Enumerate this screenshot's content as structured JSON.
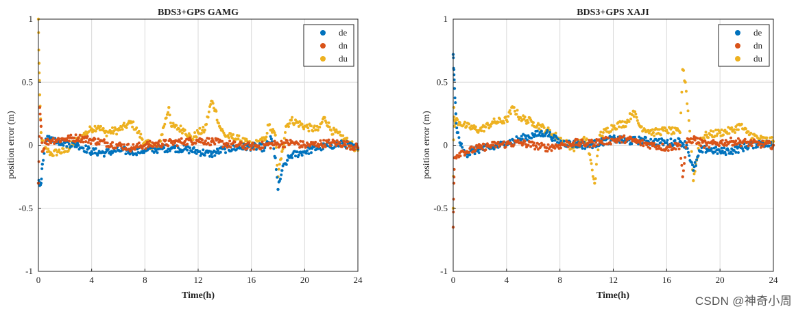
{
  "watermark": "CSDN @神奇小周",
  "colors": {
    "de": "#0072bd",
    "dn": "#d95319",
    "du": "#edb120",
    "grid": "#d9d9d9",
    "axis": "#222222"
  },
  "chart_data": [
    {
      "type": "scatter",
      "title": "BDS3+GPS GAMG",
      "xlabel": "Time(h)",
      "ylabel": "position error (m)",
      "xlim": [
        0,
        24
      ],
      "ylim": [
        -1,
        1
      ],
      "xticks": [
        0,
        4,
        8,
        12,
        16,
        20,
        24
      ],
      "yticks": [
        -1,
        -0.5,
        0,
        0.5,
        1
      ],
      "xtick_labels": [
        "0",
        "4",
        "8",
        "12",
        "16",
        "20",
        "24"
      ],
      "ytick_labels": [
        "-1",
        "-0.5",
        "0",
        "0.5",
        "1"
      ],
      "grid": true,
      "legend_position": "top-right",
      "series": [
        {
          "name": "de",
          "x": [
            0,
            0.1,
            0.2,
            0.3,
            0.5,
            0.8,
            1,
            1.5,
            2,
            3,
            4,
            5,
            6,
            7,
            8,
            9,
            10,
            11,
            12,
            13,
            14,
            15,
            16,
            17,
            17.5,
            17.8,
            18,
            18.3,
            18.7,
            19,
            20,
            21,
            22,
            23,
            24
          ],
          "y": [
            -0.3,
            -0.32,
            -0.3,
            -0.15,
            0.02,
            0.07,
            0.06,
            0.03,
            0.02,
            0.0,
            -0.05,
            -0.06,
            -0.04,
            -0.05,
            -0.04,
            -0.03,
            -0.02,
            -0.03,
            -0.05,
            -0.07,
            -0.03,
            -0.02,
            -0.01,
            -0.02,
            0.05,
            -0.1,
            -0.35,
            -0.2,
            -0.12,
            -0.08,
            -0.05,
            -0.02,
            0.0,
            0.01,
            -0.03
          ]
        },
        {
          "name": "dn",
          "x": [
            0,
            0.1,
            0.2,
            0.3,
            0.5,
            1,
            2,
            3,
            4,
            5,
            6,
            7,
            8,
            9,
            10,
            11,
            12,
            13,
            14,
            15,
            16,
            17,
            18,
            19,
            20,
            21,
            22,
            23,
            24
          ],
          "y": [
            -0.3,
            0.3,
            0.15,
            -0.05,
            0.02,
            0.04,
            0.05,
            0.06,
            0.04,
            0.02,
            0.0,
            -0.02,
            0.0,
            0.01,
            0.02,
            0.03,
            0.04,
            0.03,
            0.01,
            0.0,
            -0.01,
            0.0,
            0.01,
            0.02,
            0.0,
            0.01,
            0.02,
            0.01,
            -0.02
          ]
        },
        {
          "name": "du",
          "x": [
            0,
            0.05,
            0.1,
            0.2,
            0.4,
            0.8,
            1,
            1.5,
            2,
            3,
            4,
            4.5,
            5,
            6,
            6.5,
            7,
            7.5,
            8,
            9,
            9.8,
            10,
            11,
            11.5,
            12,
            12.5,
            13,
            13.3,
            13.6,
            14,
            15,
            16,
            17,
            17.3,
            17.5,
            17.8,
            18,
            18.3,
            18.6,
            19,
            20,
            21,
            21.5,
            22,
            23,
            24
          ],
          "y": [
            1.0,
            0.65,
            0.4,
            0.1,
            -0.03,
            -0.05,
            -0.07,
            -0.05,
            -0.05,
            0.05,
            0.13,
            0.15,
            0.1,
            0.12,
            0.15,
            0.18,
            0.1,
            0.02,
            -0.02,
            0.3,
            0.15,
            0.12,
            0.05,
            0.1,
            0.12,
            0.35,
            0.28,
            0.15,
            0.08,
            0.05,
            0.0,
            0.04,
            0.16,
            0.12,
            0.08,
            -0.25,
            -0.05,
            0.15,
            0.2,
            0.15,
            0.12,
            0.22,
            0.12,
            0.05,
            -0.04
          ]
        }
      ]
    },
    {
      "type": "scatter",
      "title": "BDS3+GPS XAJI",
      "xlabel": "Time(h)",
      "ylabel": "position error (m)",
      "xlim": [
        0,
        24
      ],
      "ylim": [
        -1,
        1
      ],
      "xticks": [
        0,
        4,
        8,
        12,
        16,
        20,
        24
      ],
      "yticks": [
        -1,
        -0.5,
        0,
        0.5,
        1
      ],
      "xtick_labels": [
        "0",
        "4",
        "8",
        "12",
        "16",
        "20",
        "24"
      ],
      "ytick_labels": [
        "-1",
        "-0.5",
        "0",
        "0.5",
        "1"
      ],
      "grid": true,
      "legend_position": "top-right",
      "series": [
        {
          "name": "de",
          "x": [
            0,
            0.05,
            0.1,
            0.2,
            0.3,
            0.5,
            0.8,
            1,
            1.5,
            2,
            3,
            4,
            5,
            6,
            7,
            7.5,
            8,
            9,
            10,
            11,
            12,
            13,
            14,
            15,
            16,
            17,
            17.5,
            18,
            18.5,
            19,
            20,
            21,
            22,
            23,
            24
          ],
          "y": [
            0.72,
            0.6,
            0.45,
            0.25,
            0.1,
            0.02,
            -0.04,
            -0.07,
            -0.05,
            -0.03,
            -0.02,
            0.02,
            0.05,
            0.08,
            0.1,
            0.06,
            0.02,
            0.01,
            0.0,
            0.02,
            0.05,
            0.03,
            0.04,
            0.03,
            0.02,
            0.03,
            0.0,
            -0.2,
            -0.05,
            -0.03,
            -0.05,
            -0.04,
            -0.01,
            0.02,
            0.0
          ]
        },
        {
          "name": "dn",
          "x": [
            0,
            0.05,
            0.1,
            0.3,
            0.6,
            1,
            2,
            3,
            4,
            5,
            6,
            7,
            8,
            9,
            10,
            11,
            12,
            13,
            14,
            15,
            16,
            17,
            17.2,
            17.5,
            18,
            19,
            20,
            21,
            22,
            23,
            24
          ],
          "y": [
            -0.65,
            -0.3,
            -0.1,
            -0.08,
            -0.05,
            -0.05,
            -0.02,
            0.0,
            0.01,
            0.02,
            0.0,
            -0.02,
            0.0,
            0.02,
            0.01,
            0.03,
            0.04,
            0.05,
            0.02,
            0.0,
            -0.02,
            0.0,
            -0.25,
            0.02,
            0.05,
            0.0,
            0.02,
            0.03,
            0.02,
            0.01,
            0.0
          ]
        },
        {
          "name": "du",
          "x": [
            0,
            0.05,
            0.1,
            0.2,
            0.5,
            1,
            2,
            3,
            4,
            4.5,
            5,
            6,
            7,
            8,
            9,
            10,
            10.6,
            11,
            12,
            13,
            13.5,
            14,
            15,
            16,
            17,
            17.2,
            17.4,
            17.8,
            18,
            18.5,
            19,
            20,
            21,
            21.5,
            22,
            23,
            24
          ],
          "y": [
            -0.5,
            0.3,
            0.15,
            0.2,
            0.18,
            0.15,
            0.12,
            0.18,
            0.2,
            0.3,
            0.22,
            0.18,
            0.12,
            0.05,
            -0.02,
            0.05,
            -0.3,
            0.08,
            0.15,
            0.18,
            0.27,
            0.15,
            0.1,
            0.12,
            0.1,
            0.6,
            0.5,
            0.05,
            -0.28,
            0.05,
            0.08,
            0.1,
            0.12,
            0.16,
            0.1,
            0.05,
            0.03
          ]
        }
      ]
    }
  ]
}
